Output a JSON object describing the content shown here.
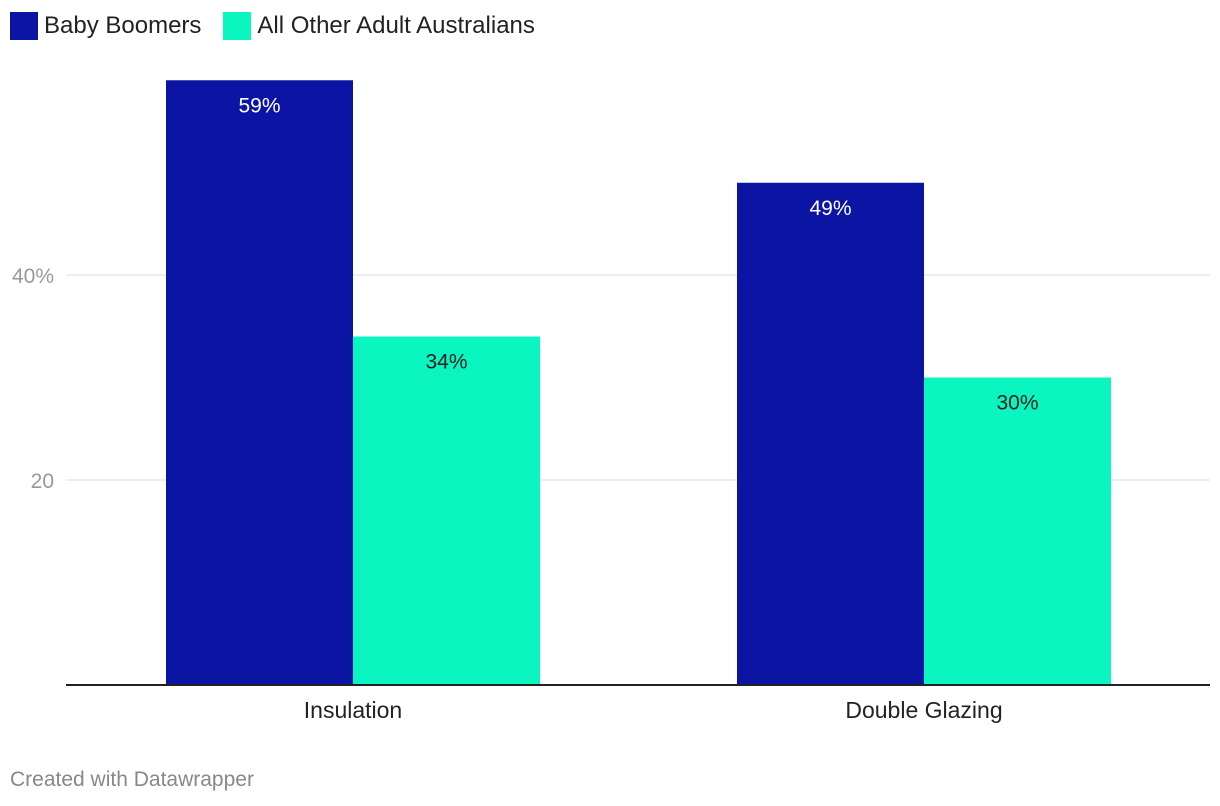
{
  "legend": {
    "items": [
      {
        "label": "Baby Boomers",
        "color": "#0b14a3"
      },
      {
        "label": "All Other Adult Australians",
        "color": "#0af5c0"
      }
    ]
  },
  "chart_data": {
    "type": "bar",
    "categories": [
      "Insulation",
      "Double Glazing"
    ],
    "series": [
      {
        "name": "Baby Boomers",
        "values": [
          59,
          49
        ],
        "labels": [
          "59%",
          "49%"
        ],
        "color": "#0b14a3",
        "label_color": "#ffffff"
      },
      {
        "name": "All Other Adult Australians",
        "values": [
          34,
          30
        ],
        "labels": [
          "34%",
          "30%"
        ],
        "color": "#0af5c0",
        "label_color": "#222222"
      }
    ],
    "yticks": [
      {
        "value": 20,
        "label": "20"
      },
      {
        "value": 40,
        "label": "40%"
      }
    ],
    "ylim": [
      0,
      60
    ],
    "grid": true,
    "legend_position": "top-left",
    "title": "",
    "xlabel": "",
    "ylabel": ""
  },
  "footer": {
    "credit": "Created with Datawrapper"
  }
}
